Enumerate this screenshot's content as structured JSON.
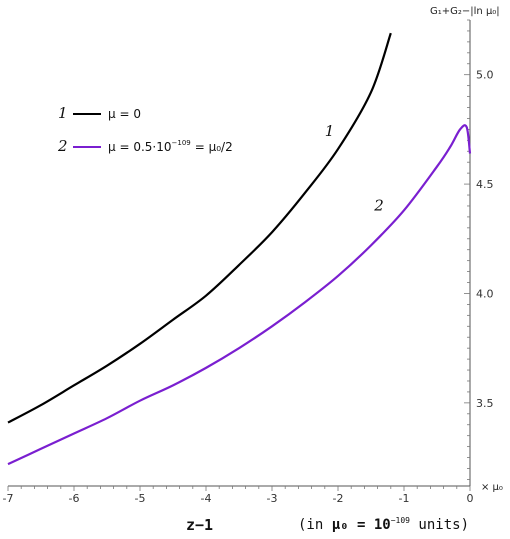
{
  "chart_data": {
    "type": "line",
    "xlim": [
      -7,
      0
    ],
    "ylim": [
      3.12,
      5.25
    ],
    "x_ticks": [
      -7,
      -6,
      -5,
      -4,
      -3,
      -2,
      -1,
      0
    ],
    "y_ticks": [
      3.5,
      4.0,
      4.5,
      5.0
    ],
    "x_tick_labels": [
      "-7",
      "-6",
      "-5",
      "-4",
      "-3",
      "-2",
      "-1",
      "0"
    ],
    "y_tick_labels": [
      "3.5",
      "4.0",
      "4.5",
      "5.0"
    ],
    "ylabel": "G₁+G₂−|ln μ₀|",
    "x_unit_label": "× μ₀",
    "legend_position": "top-left",
    "series": [
      {
        "name": "μ = 0",
        "index": "1",
        "color": "#000000",
        "x": [
          -7.0,
          -6.5,
          -6.0,
          -5.5,
          -5.0,
          -4.5,
          -4.0,
          -3.5,
          -3.0,
          -2.5,
          -2.0,
          -1.5,
          -1.2
        ],
        "y": [
          3.41,
          3.49,
          3.58,
          3.67,
          3.77,
          3.88,
          3.99,
          4.13,
          4.28,
          4.46,
          4.66,
          4.92,
          5.19
        ]
      },
      {
        "name": "μ = 0.5·10⁻¹⁰⁹ = μ₀/2",
        "index": "2",
        "color": "#7a1fd0",
        "x": [
          -7.0,
          -6.5,
          -6.0,
          -5.5,
          -5.0,
          -4.5,
          -4.0,
          -3.5,
          -3.0,
          -2.5,
          -2.0,
          -1.5,
          -1.0,
          -0.5,
          -0.3,
          -0.15,
          -0.05,
          0.0
        ],
        "y": [
          3.22,
          3.29,
          3.36,
          3.43,
          3.51,
          3.58,
          3.66,
          3.75,
          3.85,
          3.96,
          4.08,
          4.22,
          4.38,
          4.58,
          4.67,
          4.75,
          4.76,
          4.64
        ]
      }
    ],
    "curve_labels": [
      {
        "text": "1",
        "x": -2.2,
        "y": 4.72
      },
      {
        "text": "2",
        "x": -1.45,
        "y": 4.38
      }
    ]
  },
  "legend": {
    "item1_index": "1",
    "item1_text": "μ = 0",
    "item2_index": "2",
    "item2_text_main": "μ = 0.5·10",
    "item2_exp": "−109",
    "item2_text_tail": "= μ₀/2"
  },
  "caption": {
    "left": "z−1",
    "right_open": "(in ",
    "right_mu": "μ₀",
    "right_eq": " = 10",
    "right_exp": "−109",
    "right_close": " units)"
  }
}
